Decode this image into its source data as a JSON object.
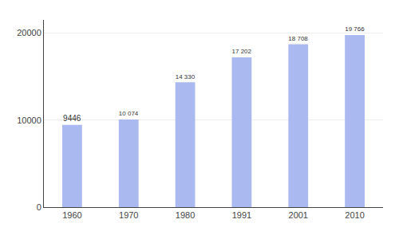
{
  "chart_data": {
    "type": "bar",
    "categories": [
      "1960",
      "1970",
      "1980",
      "1991",
      "2001",
      "2010"
    ],
    "values": [
      9446,
      10074,
      14330,
      17202,
      18708,
      19766
    ],
    "value_labels": [
      "9446",
      "10 074",
      "14 330",
      "17 202",
      "18 708",
      "19 766"
    ],
    "data_labels": true,
    "color": "#aab9f0",
    "ylim": [
      0,
      21500
    ],
    "yticks": [
      0,
      10000,
      20000
    ],
    "grid": true
  }
}
